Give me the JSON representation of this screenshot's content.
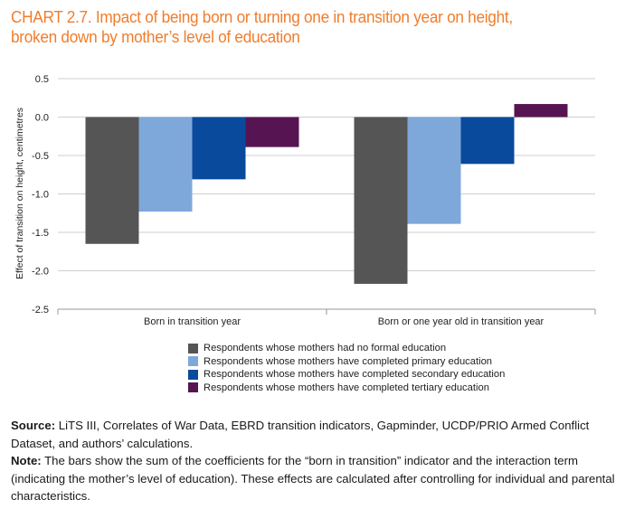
{
  "title_lines": [
    "CHART 2.7. Impact of being born or turning one in transition year on height,",
    "broken down by mother’s level of education"
  ],
  "source_label": "Source:",
  "source_text": " LiTS III, Correlates of War Data, EBRD transition indicators, Gapminder, UCDP/PRIO Armed Conflict Dataset, and authors’ calculations.",
  "note_label": "Note:",
  "note_text": " The bars show the sum of the coefficients for the “born in transition” indicator and the interaction term (indicating the mother’s level of education). These effects are calculated after controlling for individual and parental characteristics.",
  "chart_data": {
    "type": "bar",
    "title": "",
    "xlabel": "",
    "ylabel": "Effect of transition on height, centimetres",
    "ylim": [
      -2.5,
      0.5
    ],
    "yticks": [
      0.5,
      0.0,
      -0.5,
      -1.0,
      -1.5,
      -2.0,
      -2.5
    ],
    "ytick_labels": [
      "0.5",
      "0.0",
      "-0.5",
      "-1.0",
      "-1.5",
      "-2.0",
      "-2.5"
    ],
    "grid": true,
    "legend_position": "bottom",
    "categories": [
      "Born in transition year",
      "Born or one year old in transition year"
    ],
    "series": [
      {
        "name": "Respondents whose mothers had no formal education",
        "color": "#555555",
        "values": [
          -1.65,
          -2.17
        ]
      },
      {
        "name": "Respondents whose mothers have completed primary education",
        "color": "#7fa8da",
        "values": [
          -1.23,
          -1.39
        ]
      },
      {
        "name": "Respondents whose mothers have completed secondary education",
        "color": "#0a4a9c",
        "values": [
          -0.81,
          -0.61
        ]
      },
      {
        "name": "Respondents whose mothers have completed tertiary education",
        "color": "#571452",
        "values": [
          -0.39,
          0.17
        ]
      }
    ]
  }
}
